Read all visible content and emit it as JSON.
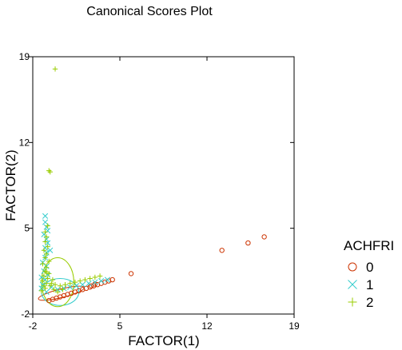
{
  "chart_data": {
    "type": "scatter",
    "title": "Canonical Scores Plot",
    "xlabel": "FACTOR(1)",
    "ylabel": "FACTOR(2)",
    "xlim": [
      -2,
      19
    ],
    "ylim": [
      -2,
      19
    ],
    "xticks": [
      -2,
      5,
      12,
      19
    ],
    "yticks": [
      -2,
      5,
      12,
      19
    ],
    "xtick_labels": [
      "-2",
      "5",
      "12",
      "19"
    ],
    "ytick_labels": [
      "-2",
      "5",
      "12",
      "19"
    ],
    "grid": false,
    "legend": {
      "title": "ACHFRI",
      "placement": "right",
      "entries": [
        "0",
        "1",
        "2"
      ]
    },
    "series": [
      {
        "name": "0",
        "marker": "circle",
        "color": "#cc3300",
        "points": [
          [
            16.6,
            4.3
          ],
          [
            15.3,
            3.8
          ],
          [
            13.2,
            3.2
          ],
          [
            5.9,
            1.3
          ],
          [
            4.4,
            0.8
          ],
          [
            4.1,
            0.7
          ],
          [
            3.8,
            0.6
          ],
          [
            3.5,
            0.5
          ],
          [
            3.2,
            0.4
          ],
          [
            2.9,
            0.3
          ],
          [
            2.6,
            0.2
          ],
          [
            2.3,
            0.1
          ],
          [
            2.0,
            0.0
          ],
          [
            1.7,
            -0.1
          ],
          [
            1.4,
            -0.2
          ],
          [
            1.1,
            -0.3
          ],
          [
            0.8,
            -0.4
          ],
          [
            0.5,
            -0.5
          ],
          [
            0.2,
            -0.6
          ],
          [
            -0.1,
            -0.7
          ],
          [
            -0.4,
            -0.8
          ],
          [
            -0.7,
            -0.9
          ],
          [
            2.7,
            0.3
          ],
          [
            3.0,
            0.45
          ]
        ],
        "ellipse": {
          "cx": 0.3,
          "cy": -0.3,
          "rx": 1.9,
          "ry": 0.35,
          "angle_deg": 14
        }
      },
      {
        "name": "1",
        "marker": "x",
        "color": "#33cccc",
        "points": [
          [
            -1.0,
            6.0
          ],
          [
            -1.0,
            5.5
          ],
          [
            -0.9,
            5.1
          ],
          [
            -0.8,
            4.8
          ],
          [
            -1.1,
            4.5
          ],
          [
            -0.9,
            4.1
          ],
          [
            -0.8,
            3.8
          ],
          [
            -1.0,
            3.4
          ],
          [
            -0.9,
            3.0
          ],
          [
            -1.0,
            2.6
          ],
          [
            -1.2,
            2.2
          ],
          [
            -0.9,
            1.9
          ],
          [
            -1.1,
            1.5
          ],
          [
            -0.8,
            1.2
          ],
          [
            -1.0,
            0.8
          ],
          [
            -1.2,
            0.4
          ],
          [
            -1.3,
            0.1
          ],
          [
            -0.9,
            -0.2
          ],
          [
            -0.5,
            0.2
          ],
          [
            0.0,
            0.0
          ],
          [
            0.5,
            0.1
          ],
          [
            1.0,
            0.2
          ],
          [
            1.5,
            0.3
          ],
          [
            2.0,
            0.4
          ],
          [
            2.5,
            0.5
          ],
          [
            3.0,
            0.6
          ],
          [
            3.5,
            0.7
          ],
          [
            4.0,
            0.8
          ],
          [
            -0.6,
            3.2
          ],
          [
            -1.3,
            1.0
          ]
        ],
        "ellipse": {
          "cx": 0.2,
          "cy": -0.2,
          "rx": 1.5,
          "ry": 1.1,
          "angle_deg": 0
        }
      },
      {
        "name": "2",
        "marker": "plus",
        "color": "#99cc00",
        "points": [
          [
            -0.2,
            18.0
          ],
          [
            -0.7,
            9.7
          ],
          [
            -0.6,
            9.6
          ],
          [
            -0.8,
            5.2
          ],
          [
            -1.0,
            4.7
          ],
          [
            -0.9,
            4.3
          ],
          [
            -1.0,
            3.9
          ],
          [
            -0.8,
            3.5
          ],
          [
            -1.1,
            3.2
          ],
          [
            -0.9,
            2.9
          ],
          [
            -1.0,
            2.6
          ],
          [
            -0.7,
            2.3
          ],
          [
            -1.2,
            2.1
          ],
          [
            -0.9,
            1.8
          ],
          [
            -1.0,
            1.5
          ],
          [
            -0.7,
            1.3
          ],
          [
            -1.1,
            1.1
          ],
          [
            -0.8,
            0.9
          ],
          [
            -1.2,
            0.7
          ],
          [
            -0.9,
            0.5
          ],
          [
            -0.6,
            0.3
          ],
          [
            -1.0,
            0.1
          ],
          [
            -1.3,
            -0.1
          ],
          [
            -0.5,
            0.5
          ],
          [
            -0.2,
            0.4
          ],
          [
            0.2,
            0.3
          ],
          [
            0.6,
            0.4
          ],
          [
            1.0,
            0.5
          ],
          [
            1.4,
            0.6
          ],
          [
            1.8,
            0.7
          ],
          [
            2.2,
            0.8
          ],
          [
            2.6,
            0.9
          ],
          [
            3.0,
            1.0
          ],
          [
            3.4,
            1.1
          ],
          [
            -0.3,
            0.0
          ],
          [
            0.0,
            -0.2
          ],
          [
            0.4,
            0.0
          ],
          [
            -1.1,
            0.3
          ],
          [
            -0.4,
            0.8
          ],
          [
            -0.9,
            1.4
          ]
        ],
        "ellipse": {
          "cx": 0.0,
          "cy": 0.6,
          "rx": 1.3,
          "ry": 2.0,
          "angle_deg": 0
        }
      }
    ]
  }
}
